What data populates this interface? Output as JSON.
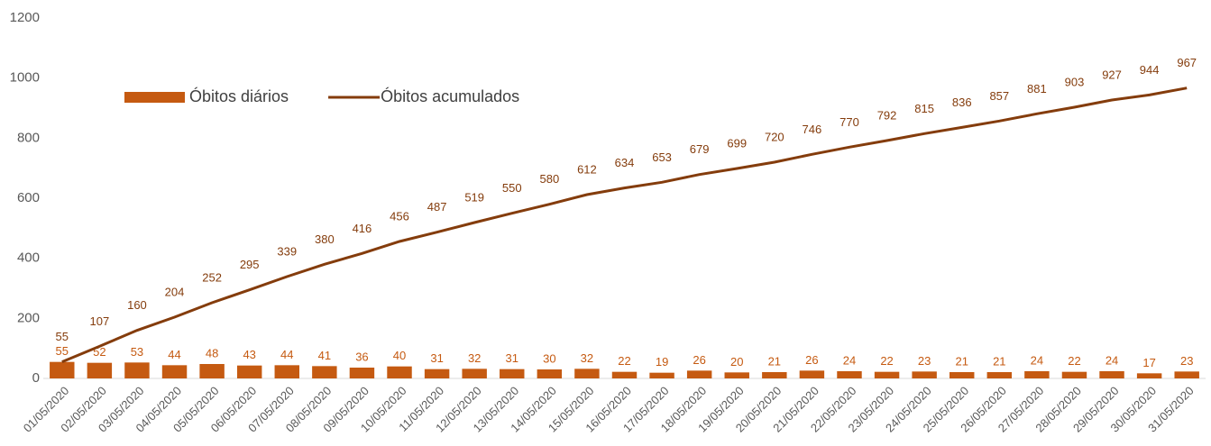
{
  "chart_data": {
    "type": "combo",
    "categories": [
      "01/05/2020",
      "02/05/2020",
      "03/05/2020",
      "04/05/2020",
      "05/05/2020",
      "06/05/2020",
      "07/05/2020",
      "08/05/2020",
      "09/05/2020",
      "10/05/2020",
      "11/05/2020",
      "12/05/2020",
      "13/05/2020",
      "14/05/2020",
      "15/05/2020",
      "16/05/2020",
      "17/05/2020",
      "18/05/2020",
      "19/05/2020",
      "20/05/2020",
      "21/05/2020",
      "22/05/2020",
      "23/05/2020",
      "24/05/2020",
      "25/05/2020",
      "26/05/2020",
      "27/05/2020",
      "28/05/2020",
      "29/05/2020",
      "30/05/2020",
      "31/05/2020"
    ],
    "series": [
      {
        "name": "Óbitos diários",
        "type": "bar",
        "color": "#c55a11",
        "values": [
          55,
          52,
          53,
          44,
          48,
          43,
          44,
          41,
          36,
          40,
          31,
          32,
          31,
          30,
          32,
          22,
          19,
          26,
          20,
          21,
          26,
          24,
          22,
          23,
          21,
          21,
          24,
          22,
          24,
          17,
          23
        ]
      },
      {
        "name": "Óbitos acumulados",
        "type": "line",
        "color": "#843c0c",
        "values": [
          55,
          107,
          160,
          204,
          252,
          295,
          339,
          380,
          416,
          456,
          487,
          519,
          550,
          580,
          612,
          634,
          653,
          679,
          699,
          720,
          746,
          770,
          792,
          815,
          836,
          857,
          881,
          903,
          927,
          944,
          967
        ]
      }
    ],
    "ylim": [
      0,
      1200
    ],
    "yticks": [
      0,
      200,
      400,
      600,
      800,
      1000,
      1200
    ],
    "grid": false,
    "legend": "top-left"
  }
}
